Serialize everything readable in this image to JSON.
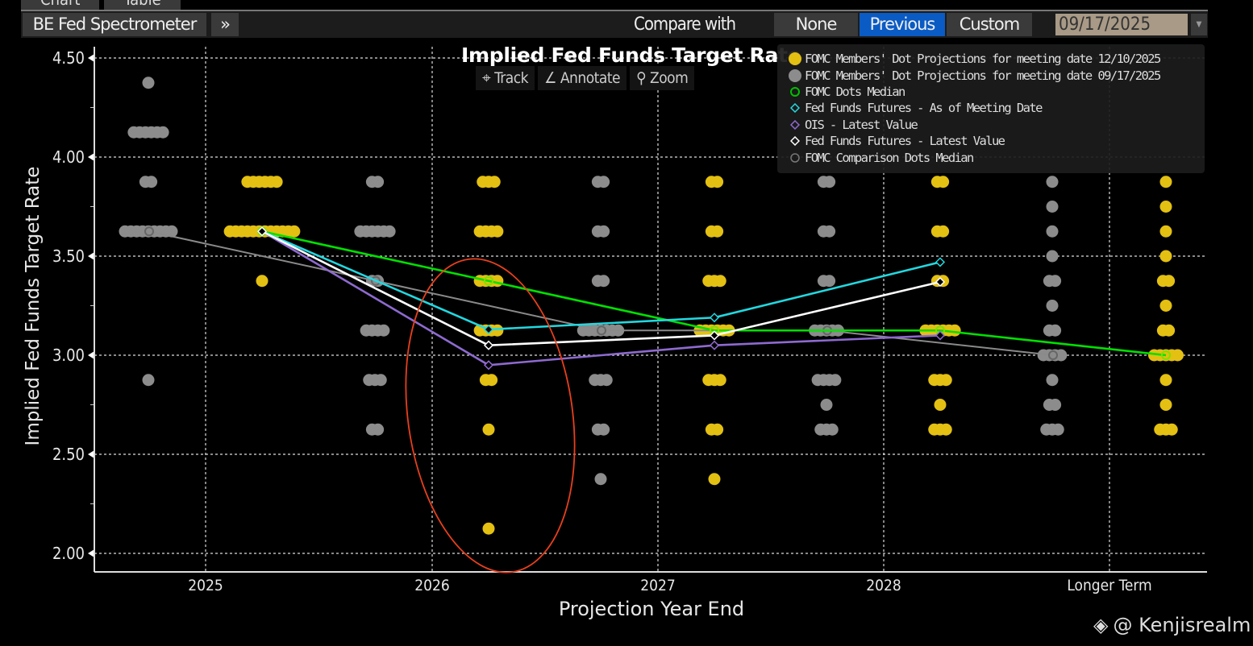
{
  "tabs": [
    "Chart",
    "Table"
  ],
  "toolbar": {
    "app_title": "BE Fed Spectrometer",
    "expand_icon": "double-chevron-right",
    "compare_label": "Compare with",
    "compare_options": [
      "None",
      "Previous",
      "Custom"
    ],
    "compare_selected": "Previous",
    "date": "09/17/2025",
    "accent": "#0a5bc4"
  },
  "chart_tools": [
    "Track",
    "Annotate",
    "Zoom"
  ],
  "watermark": "@ Kenjisrealm",
  "chart_data": {
    "type": "scatter",
    "title": "Implied Fed Funds Target Rate",
    "xlabel": "Projection Year End",
    "ylabel": "Implied Fed Funds Target Rate",
    "categories": [
      "2025",
      "2026",
      "2027",
      "2028",
      "Longer Term"
    ],
    "ylim": [
      2.0,
      4.5
    ],
    "yticks": [
      "2.00",
      "2.50",
      "3.00",
      "3.50",
      "4.00",
      "4.50"
    ],
    "grid": true,
    "legend_position": "top-right",
    "legend": [
      "FOMC Members' Dot Projections for meeting date 12/10/2025",
      "FOMC Members' Dot Projections for meeting date 09/17/2025",
      "FOMC Dots Median",
      "Fed Funds Futures - As of Meeting Date",
      "OIS - Latest Value",
      "Fed Funds Futures - Latest Value",
      "FOMC Comparison Dots Median"
    ],
    "dots": [
      {
        "name": "FOMC Members' Dot Projections for meeting date 12/10/2025",
        "color": "#e3c012",
        "counts": [
          {
            "3.875": 6,
            "3.625": 12,
            "3.375": 1
          },
          {
            "3.875": 3,
            "3.625": 4,
            "3.375": 4,
            "3.125": 4,
            "2.875": 2,
            "2.625": 1,
            "2.125": 1
          },
          {
            "3.875": 2,
            "3.625": 2,
            "3.375": 3,
            "3.125": 6,
            "2.875": 3,
            "2.625": 2,
            "2.375": 1
          },
          {
            "3.875": 2,
            "3.625": 2,
            "3.375": 2,
            "3.125": 6,
            "2.875": 3,
            "2.75": 1,
            "2.625": 3
          },
          {
            "3.875": 1,
            "3.75": 1,
            "3.625": 1,
            "3.5": 1,
            "3.375": 2,
            "3.25": 1,
            "3.125": 2,
            "3.0": 5,
            "2.875": 1,
            "2.75": 1,
            "2.625": 3
          }
        ]
      },
      {
        "name": "FOMC Members' Dot Projections for meeting date 09/17/2025",
        "color": "#8c8c8c",
        "counts": [
          {
            "4.375": 1,
            "4.125": 6,
            "3.875": 2,
            "3.625": 9,
            "2.875": 1
          },
          {
            "3.875": 2,
            "3.625": 6,
            "3.375": 2,
            "3.125": 4,
            "2.875": 3,
            "2.625": 2
          },
          {
            "3.875": 2,
            "3.625": 2,
            "3.375": 2,
            "3.125": 7,
            "2.875": 3,
            "2.625": 2,
            "2.375": 1
          },
          {
            "3.875": 2,
            "3.625": 2,
            "3.375": 2,
            "3.125": 5,
            "2.875": 4,
            "2.75": 1,
            "2.625": 3
          },
          {
            "3.875": 1,
            "3.75": 1,
            "3.625": 1,
            "3.5": 1,
            "3.375": 2,
            "3.25": 1,
            "3.125": 2,
            "3.0": 4,
            "2.875": 1,
            "2.75": 2,
            "2.625": 3
          }
        ]
      }
    ],
    "series": [
      {
        "name": "FOMC Comparison Dots Median",
        "color": "#8a8a8a",
        "marker": "circle",
        "group": "previous",
        "values": [
          3.625,
          3.375,
          3.125,
          3.125,
          3.0
        ]
      },
      {
        "name": "FOMC Dots Median",
        "color": "#00e000",
        "marker": "circle",
        "group": "current",
        "values": [
          3.625,
          3.375,
          3.125,
          3.125,
          3.0
        ]
      },
      {
        "name": "Fed Funds Futures - As of Meeting Date",
        "color": "#22d8e0",
        "marker": "diamond",
        "group": "current",
        "values": [
          3.625,
          3.13,
          3.19,
          3.47,
          null
        ]
      },
      {
        "name": "OIS - Latest Value",
        "color": "#8e6ad0",
        "marker": "diamond",
        "group": "current",
        "values": [
          3.625,
          2.95,
          3.05,
          3.1,
          null
        ]
      },
      {
        "name": "Fed Funds Futures - Latest Value",
        "color": "#ffffff",
        "marker": "diamond",
        "group": "current",
        "values": [
          3.625,
          3.05,
          3.1,
          3.37,
          null
        ]
      }
    ],
    "annotation": {
      "shape": "ellipse",
      "color": "#e8401c",
      "around": "2026"
    }
  }
}
